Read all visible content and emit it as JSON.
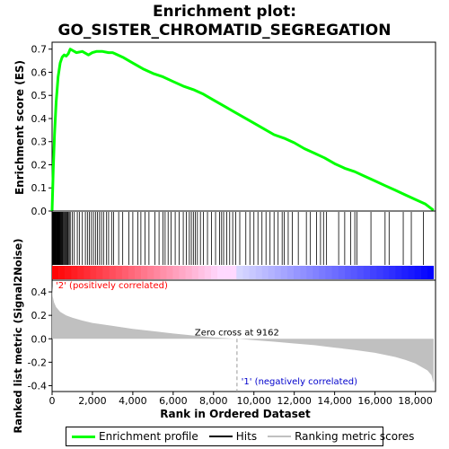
{
  "chart_data": {
    "type": "line",
    "title_line1": "Enrichment plot:",
    "title_line2": "GO_SISTER_CHROMATID_SEGREGATION",
    "es_panel": {
      "ylabel": "Enrichment score (ES)",
      "ylim": [
        0.0,
        0.73
      ],
      "yticks": [
        "0.0",
        "0.1",
        "0.2",
        "0.3",
        "0.4",
        "0.5",
        "0.6",
        "0.7"
      ],
      "ytick_values": [
        0.0,
        0.1,
        0.2,
        0.3,
        0.4,
        0.5,
        0.6,
        0.7
      ],
      "color": "#00ff00",
      "series": {
        "name": "Enrichment profile",
        "x": [
          0,
          60,
          120,
          200,
          300,
          400,
          500,
          600,
          700,
          800,
          900,
          1000,
          1200,
          1500,
          1800,
          2000,
          2200,
          2500,
          2800,
          3000,
          3500,
          4000,
          4500,
          5000,
          5500,
          6000,
          6500,
          7000,
          7500,
          8000,
          8500,
          9000,
          9500,
          10000,
          10500,
          11000,
          11500,
          12000,
          12500,
          13000,
          13500,
          14000,
          14500,
          15000,
          15500,
          16000,
          16500,
          17000,
          17500,
          18000,
          18500,
          18900
        ],
        "y": [
          0.0,
          0.18,
          0.33,
          0.47,
          0.58,
          0.64,
          0.665,
          0.675,
          0.67,
          0.68,
          0.7,
          0.695,
          0.685,
          0.69,
          0.675,
          0.685,
          0.69,
          0.69,
          0.685,
          0.685,
          0.665,
          0.64,
          0.615,
          0.595,
          0.58,
          0.56,
          0.54,
          0.525,
          0.505,
          0.48,
          0.455,
          0.43,
          0.405,
          0.38,
          0.355,
          0.33,
          0.315,
          0.295,
          0.27,
          0.25,
          0.23,
          0.205,
          0.185,
          0.17,
          0.15,
          0.13,
          0.11,
          0.09,
          0.07,
          0.05,
          0.03,
          0.003
        ]
      }
    },
    "hits_panel": {
      "legend_name": "Hits",
      "hit_positions": [
        5,
        20,
        40,
        60,
        80,
        100,
        120,
        140,
        160,
        180,
        200,
        220,
        240,
        260,
        280,
        300,
        320,
        340,
        360,
        380,
        400,
        430,
        460,
        490,
        520,
        560,
        600,
        640,
        680,
        720,
        760,
        800,
        850,
        900,
        1000,
        1100,
        1250,
        1350,
        1500,
        1650,
        1750,
        1850,
        1950,
        2050,
        2150,
        2250,
        2350,
        2450,
        2550,
        2700,
        2800,
        2950,
        3050,
        3300,
        3500,
        3800,
        4000,
        4250,
        4400,
        4600,
        4800,
        5100,
        5300,
        5500,
        5600,
        5750,
        5900,
        6100,
        6300,
        6500,
        6650,
        6800,
        6900,
        7000,
        7100,
        7200,
        7350,
        7500,
        7700,
        7900,
        8100,
        8300,
        8400,
        8500,
        8650,
        8800,
        8950,
        9100,
        9300,
        9600,
        9800,
        10000,
        10200,
        10400,
        10600,
        10800,
        11000,
        11200,
        11400,
        11500,
        11700,
        11900,
        12200,
        12600,
        12800,
        13100,
        13300,
        13450,
        13600,
        14200,
        14500,
        14800,
        15000,
        15100,
        15800,
        16500,
        16700,
        17400,
        17800,
        18400
      ]
    },
    "metric_panel": {
      "ylabel": "Ranked list metric (Signal2Noise)",
      "xlabel": "Rank in Ordered Dataset",
      "ylim": [
        -0.45,
        0.5
      ],
      "yticks": [
        "-0.4",
        "-0.2",
        "0.0",
        "0.2",
        "0.4"
      ],
      "ytick_values": [
        -0.4,
        -0.2,
        0.0,
        0.2,
        0.4
      ],
      "legend_name": "Ranking metric scores",
      "fill_color": "#c0c0c0",
      "x": [
        0,
        30,
        100,
        200,
        400,
        700,
        1000,
        1500,
        2000,
        3000,
        4000,
        5000,
        6000,
        7000,
        8000,
        9162,
        10000,
        11000,
        12000,
        13000,
        14000,
        15000,
        16000,
        17000,
        17500,
        18000,
        18300,
        18600,
        18800,
        18900
      ],
      "values": [
        0.45,
        0.36,
        0.31,
        0.27,
        0.23,
        0.2,
        0.18,
        0.155,
        0.135,
        0.11,
        0.085,
        0.065,
        0.045,
        0.028,
        0.012,
        0.0,
        -0.012,
        -0.025,
        -0.04,
        -0.055,
        -0.075,
        -0.095,
        -0.12,
        -0.155,
        -0.18,
        -0.21,
        -0.24,
        -0.27,
        -0.31,
        -0.38
      ],
      "zero_cross_label": "Zero cross at 9162",
      "zero_cross": 9162,
      "pos_label": "'2' (positively correlated)",
      "neg_label": "'1' (negatively correlated)"
    },
    "x_axis": {
      "xlim": [
        0,
        19000
      ],
      "xticks": [
        "0",
        "2,000",
        "4,000",
        "6,000",
        "8,000",
        "10,000",
        "12,000",
        "14,000",
        "16,000",
        "18,000"
      ],
      "xtick_values": [
        0,
        2000,
        4000,
        6000,
        8000,
        10000,
        12000,
        14000,
        16000,
        18000
      ],
      "n_genes": 18900
    }
  },
  "legend": {
    "profile": "Enrichment profile",
    "hits": "Hits",
    "ranking": "Ranking metric scores",
    "profile_color": "#00ff00",
    "hits_color": "#000000",
    "ranking_color": "#c0c0c0"
  }
}
